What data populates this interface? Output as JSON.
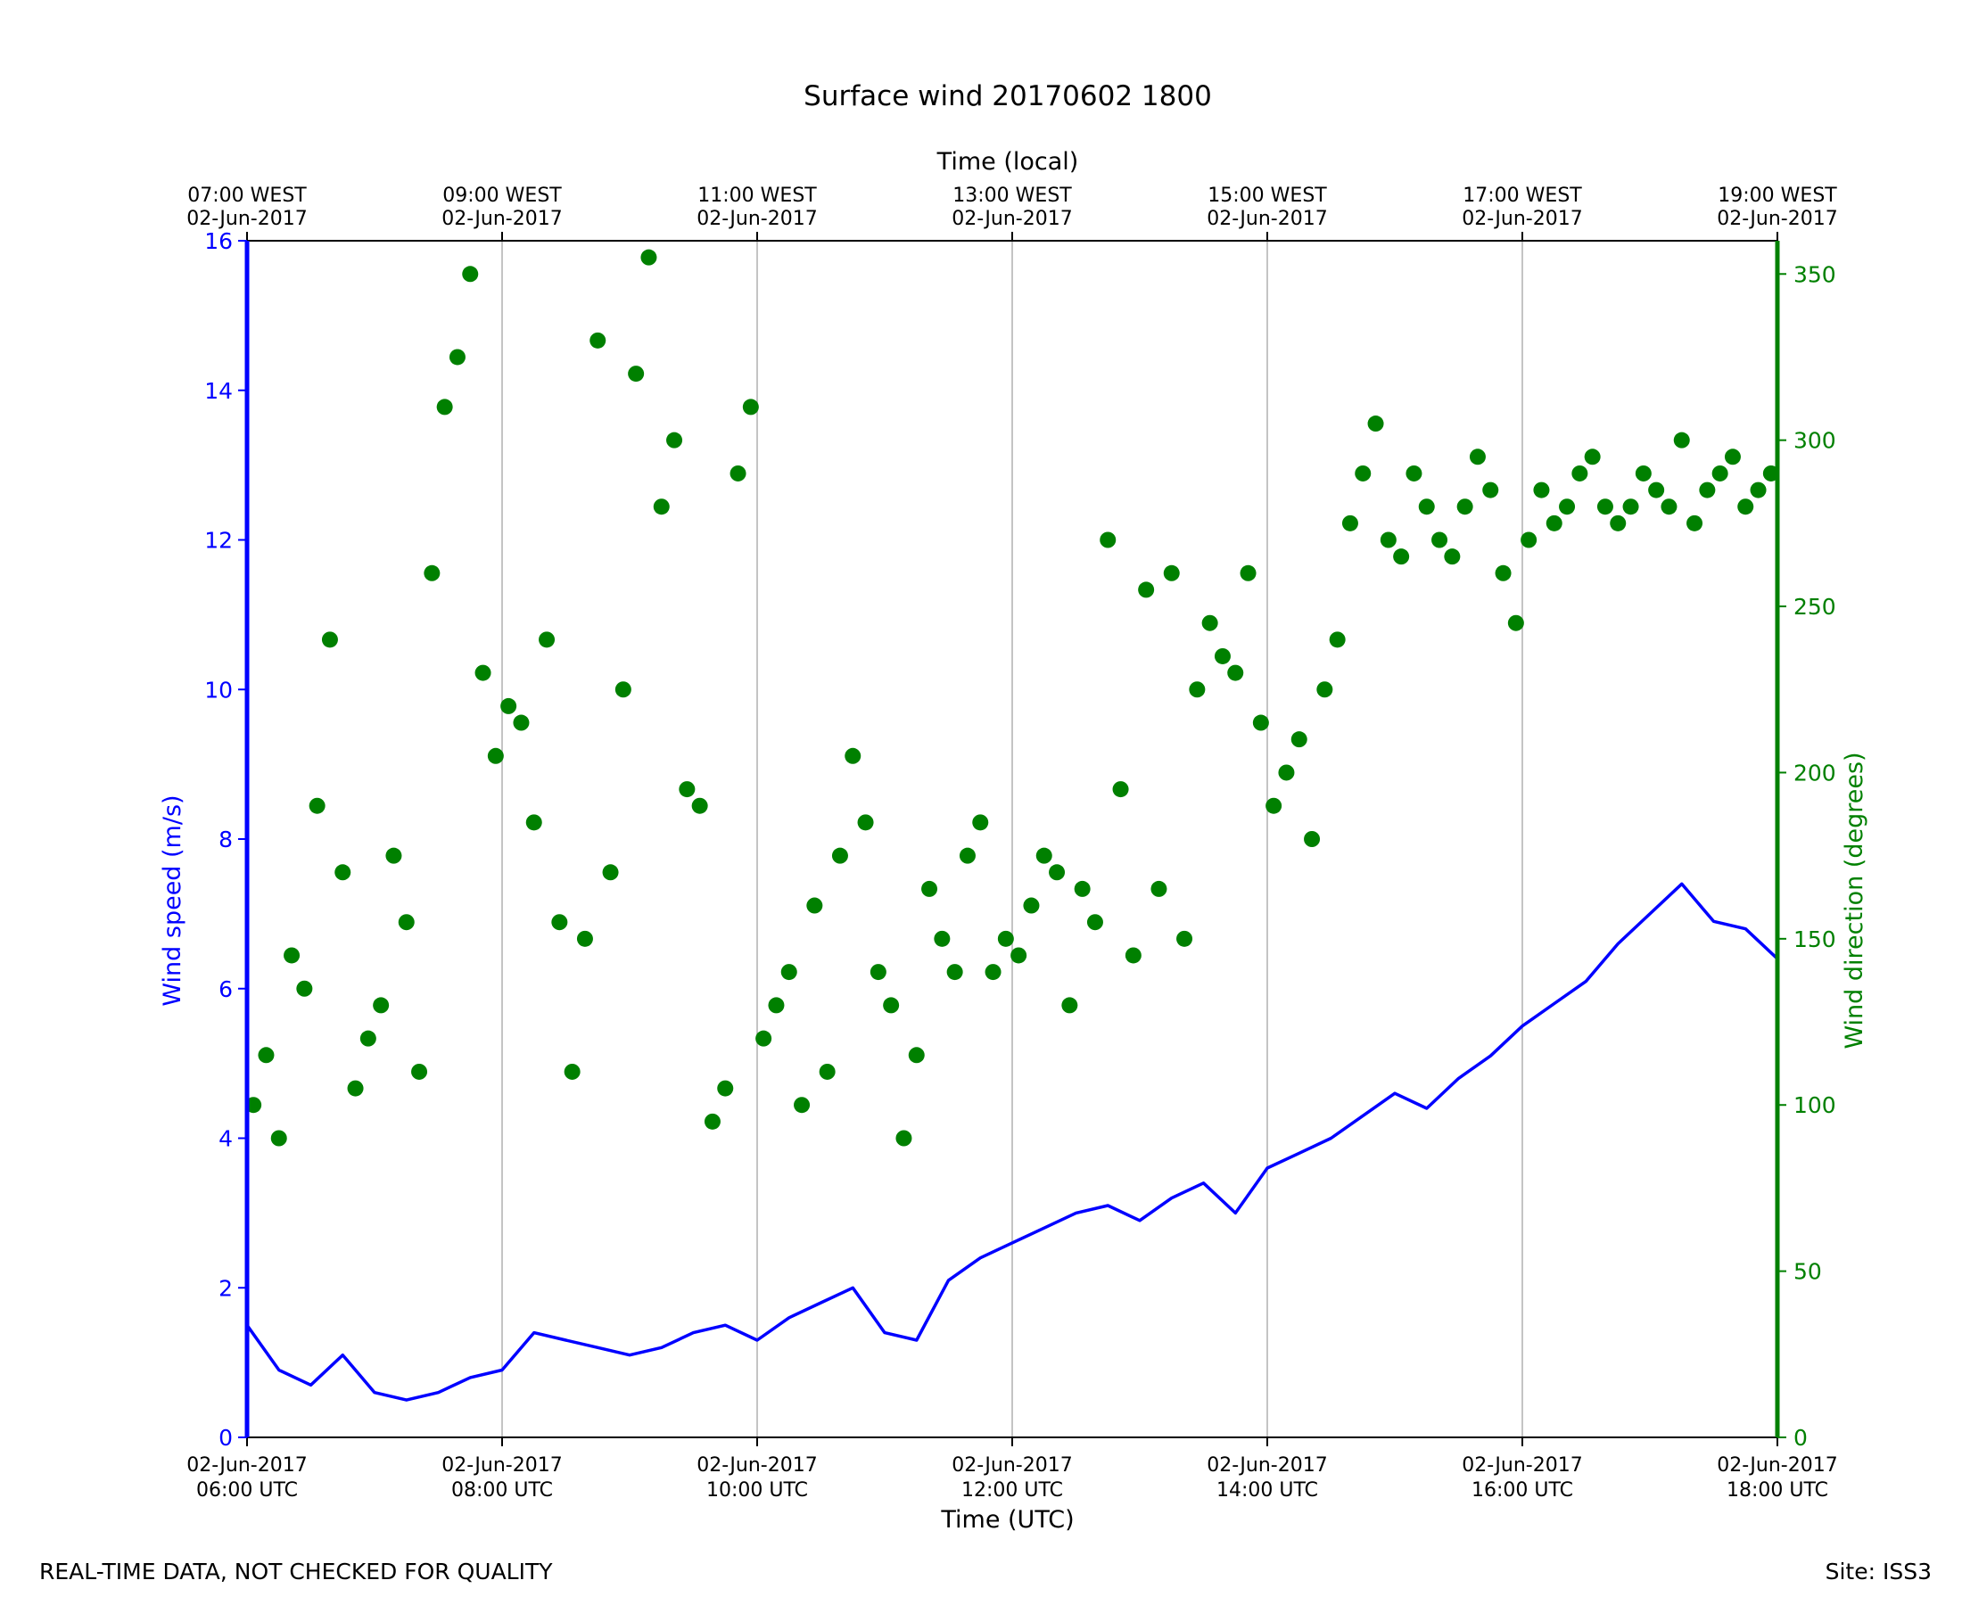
{
  "chart_data": {
    "type": "line",
    "title": "Surface wind 20170602 1800",
    "xlabel": "Time (UTC)",
    "x2label": "Time (local)",
    "ylabel": "Wind speed (m/s)",
    "y2label": "Wind direction (degrees)",
    "xlim": [
      "2017-06-02T06:00Z",
      "2017-06-02T18:00Z"
    ],
    "ylim": [
      0,
      16
    ],
    "y2lim": [
      0,
      360
    ],
    "grid": "vertical lines at x ticks",
    "x_ticks": [
      {
        "line1": "02-Jun-2017",
        "line2": "06:00 UTC"
      },
      {
        "line1": "02-Jun-2017",
        "line2": "08:00 UTC"
      },
      {
        "line1": "02-Jun-2017",
        "line2": "10:00 UTC"
      },
      {
        "line1": "02-Jun-2017",
        "line2": "12:00 UTC"
      },
      {
        "line1": "02-Jun-2017",
        "line2": "14:00 UTC"
      },
      {
        "line1": "02-Jun-2017",
        "line2": "16:00 UTC"
      },
      {
        "line1": "02-Jun-2017",
        "line2": "18:00 UTC"
      }
    ],
    "x2_ticks": [
      {
        "line1": "07:00 WEST",
        "line2": "02-Jun-2017"
      },
      {
        "line1": "09:00 WEST",
        "line2": "02-Jun-2017"
      },
      {
        "line1": "11:00 WEST",
        "line2": "02-Jun-2017"
      },
      {
        "line1": "13:00 WEST",
        "line2": "02-Jun-2017"
      },
      {
        "line1": "15:00 WEST",
        "line2": "02-Jun-2017"
      },
      {
        "line1": "17:00 WEST",
        "line2": "02-Jun-2017"
      },
      {
        "line1": "19:00 WEST",
        "line2": "02-Jun-2017"
      }
    ],
    "y_ticks": [
      0,
      2,
      4,
      6,
      8,
      10,
      12,
      14,
      16
    ],
    "y2_ticks": [
      0,
      50,
      100,
      150,
      200,
      250,
      300,
      350
    ],
    "colors": {
      "speed": "#0000ff",
      "direction": "#008000",
      "grid": "#b0b0b0",
      "axis": "#000000"
    },
    "series": [
      {
        "name": "Wind speed (m/s)",
        "axis": "left",
        "style": "line",
        "x_unit": "hours after 06:00 UTC",
        "points": [
          [
            0.0,
            1.5
          ],
          [
            0.25,
            0.9
          ],
          [
            0.5,
            0.7
          ],
          [
            0.75,
            1.1
          ],
          [
            1.0,
            0.6
          ],
          [
            1.25,
            0.5
          ],
          [
            1.5,
            0.6
          ],
          [
            1.75,
            0.8
          ],
          [
            2.0,
            0.9
          ],
          [
            2.25,
            1.4
          ],
          [
            2.5,
            1.3
          ],
          [
            2.75,
            1.2
          ],
          [
            3.0,
            1.1
          ],
          [
            3.25,
            1.2
          ],
          [
            3.5,
            1.4
          ],
          [
            3.75,
            1.5
          ],
          [
            4.0,
            1.3
          ],
          [
            4.25,
            1.6
          ],
          [
            4.5,
            1.8
          ],
          [
            4.75,
            2.0
          ],
          [
            5.0,
            1.4
          ],
          [
            5.25,
            1.3
          ],
          [
            5.5,
            2.1
          ],
          [
            5.75,
            2.4
          ],
          [
            6.0,
            2.6
          ],
          [
            6.25,
            2.8
          ],
          [
            6.5,
            3.0
          ],
          [
            6.75,
            3.1
          ],
          [
            7.0,
            2.9
          ],
          [
            7.25,
            3.2
          ],
          [
            7.5,
            3.4
          ],
          [
            7.75,
            3.0
          ],
          [
            8.0,
            3.6
          ],
          [
            8.25,
            3.8
          ],
          [
            8.5,
            4.0
          ],
          [
            8.75,
            4.3
          ],
          [
            9.0,
            4.6
          ],
          [
            9.25,
            4.4
          ],
          [
            9.5,
            4.8
          ],
          [
            9.75,
            5.1
          ],
          [
            10.0,
            5.5
          ],
          [
            10.25,
            5.8
          ],
          [
            10.5,
            6.1
          ],
          [
            10.75,
            6.6
          ],
          [
            11.0,
            7.0
          ],
          [
            11.25,
            7.4
          ],
          [
            11.5,
            6.9
          ],
          [
            11.75,
            6.8
          ],
          [
            12.0,
            6.4
          ]
        ]
      },
      {
        "name": "Wind direction (degrees)",
        "axis": "right",
        "style": "scatter",
        "x_unit": "hours after 06:00 UTC",
        "points": [
          [
            0.05,
            100
          ],
          [
            0.15,
            115
          ],
          [
            0.25,
            90
          ],
          [
            0.35,
            145
          ],
          [
            0.45,
            135
          ],
          [
            0.55,
            190
          ],
          [
            0.65,
            240
          ],
          [
            0.75,
            170
          ],
          [
            0.85,
            105
          ],
          [
            0.95,
            120
          ],
          [
            1.05,
            130
          ],
          [
            1.15,
            175
          ],
          [
            1.25,
            155
          ],
          [
            1.35,
            110
          ],
          [
            1.45,
            260
          ],
          [
            1.55,
            310
          ],
          [
            1.65,
            325
          ],
          [
            1.75,
            350
          ],
          [
            1.85,
            230
          ],
          [
            1.95,
            205
          ],
          [
            2.05,
            220
          ],
          [
            2.15,
            215
          ],
          [
            2.25,
            185
          ],
          [
            2.35,
            240
          ],
          [
            2.45,
            155
          ],
          [
            2.55,
            110
          ],
          [
            2.65,
            150
          ],
          [
            2.75,
            330
          ],
          [
            2.85,
            170
          ],
          [
            2.95,
            225
          ],
          [
            3.05,
            320
          ],
          [
            3.15,
            355
          ],
          [
            3.25,
            280
          ],
          [
            3.35,
            300
          ],
          [
            3.45,
            195
          ],
          [
            3.55,
            190
          ],
          [
            3.65,
            95
          ],
          [
            3.75,
            105
          ],
          [
            3.85,
            290
          ],
          [
            3.95,
            310
          ],
          [
            4.05,
            120
          ],
          [
            4.15,
            130
          ],
          [
            4.25,
            140
          ],
          [
            4.35,
            100
          ],
          [
            4.45,
            160
          ],
          [
            4.55,
            110
          ],
          [
            4.65,
            175
          ],
          [
            4.75,
            205
          ],
          [
            4.85,
            185
          ],
          [
            4.95,
            140
          ],
          [
            5.05,
            130
          ],
          [
            5.15,
            90
          ],
          [
            5.25,
            115
          ],
          [
            5.35,
            165
          ],
          [
            5.45,
            150
          ],
          [
            5.55,
            140
          ],
          [
            5.65,
            175
          ],
          [
            5.75,
            185
          ],
          [
            5.85,
            140
          ],
          [
            5.95,
            150
          ],
          [
            6.05,
            145
          ],
          [
            6.15,
            160
          ],
          [
            6.25,
            175
          ],
          [
            6.35,
            170
          ],
          [
            6.45,
            130
          ],
          [
            6.55,
            165
          ],
          [
            6.65,
            155
          ],
          [
            6.75,
            270
          ],
          [
            6.85,
            195
          ],
          [
            6.95,
            145
          ],
          [
            7.05,
            255
          ],
          [
            7.15,
            165
          ],
          [
            7.25,
            260
          ],
          [
            7.35,
            150
          ],
          [
            7.45,
            225
          ],
          [
            7.55,
            245
          ],
          [
            7.65,
            235
          ],
          [
            7.75,
            230
          ],
          [
            7.85,
            260
          ],
          [
            7.95,
            215
          ],
          [
            8.05,
            190
          ],
          [
            8.15,
            200
          ],
          [
            8.25,
            210
          ],
          [
            8.35,
            180
          ],
          [
            8.45,
            225
          ],
          [
            8.55,
            240
          ],
          [
            8.65,
            275
          ],
          [
            8.75,
            290
          ],
          [
            8.85,
            305
          ],
          [
            8.95,
            270
          ],
          [
            9.05,
            265
          ],
          [
            9.15,
            290
          ],
          [
            9.25,
            280
          ],
          [
            9.35,
            270
          ],
          [
            9.45,
            265
          ],
          [
            9.55,
            280
          ],
          [
            9.65,
            295
          ],
          [
            9.75,
            285
          ],
          [
            9.85,
            260
          ],
          [
            9.95,
            245
          ],
          [
            10.05,
            270
          ],
          [
            10.15,
            285
          ],
          [
            10.25,
            275
          ],
          [
            10.35,
            280
          ],
          [
            10.45,
            290
          ],
          [
            10.55,
            295
          ],
          [
            10.65,
            280
          ],
          [
            10.75,
            275
          ],
          [
            10.85,
            280
          ],
          [
            10.95,
            290
          ],
          [
            11.05,
            285
          ],
          [
            11.15,
            280
          ],
          [
            11.25,
            300
          ],
          [
            11.35,
            275
          ],
          [
            11.45,
            285
          ],
          [
            11.55,
            290
          ],
          [
            11.65,
            295
          ],
          [
            11.75,
            280
          ],
          [
            11.85,
            285
          ],
          [
            11.95,
            290
          ]
        ]
      }
    ]
  },
  "footer": {
    "left": "REAL-TIME DATA, NOT CHECKED FOR QUALITY",
    "right": "Site: ISS3"
  }
}
